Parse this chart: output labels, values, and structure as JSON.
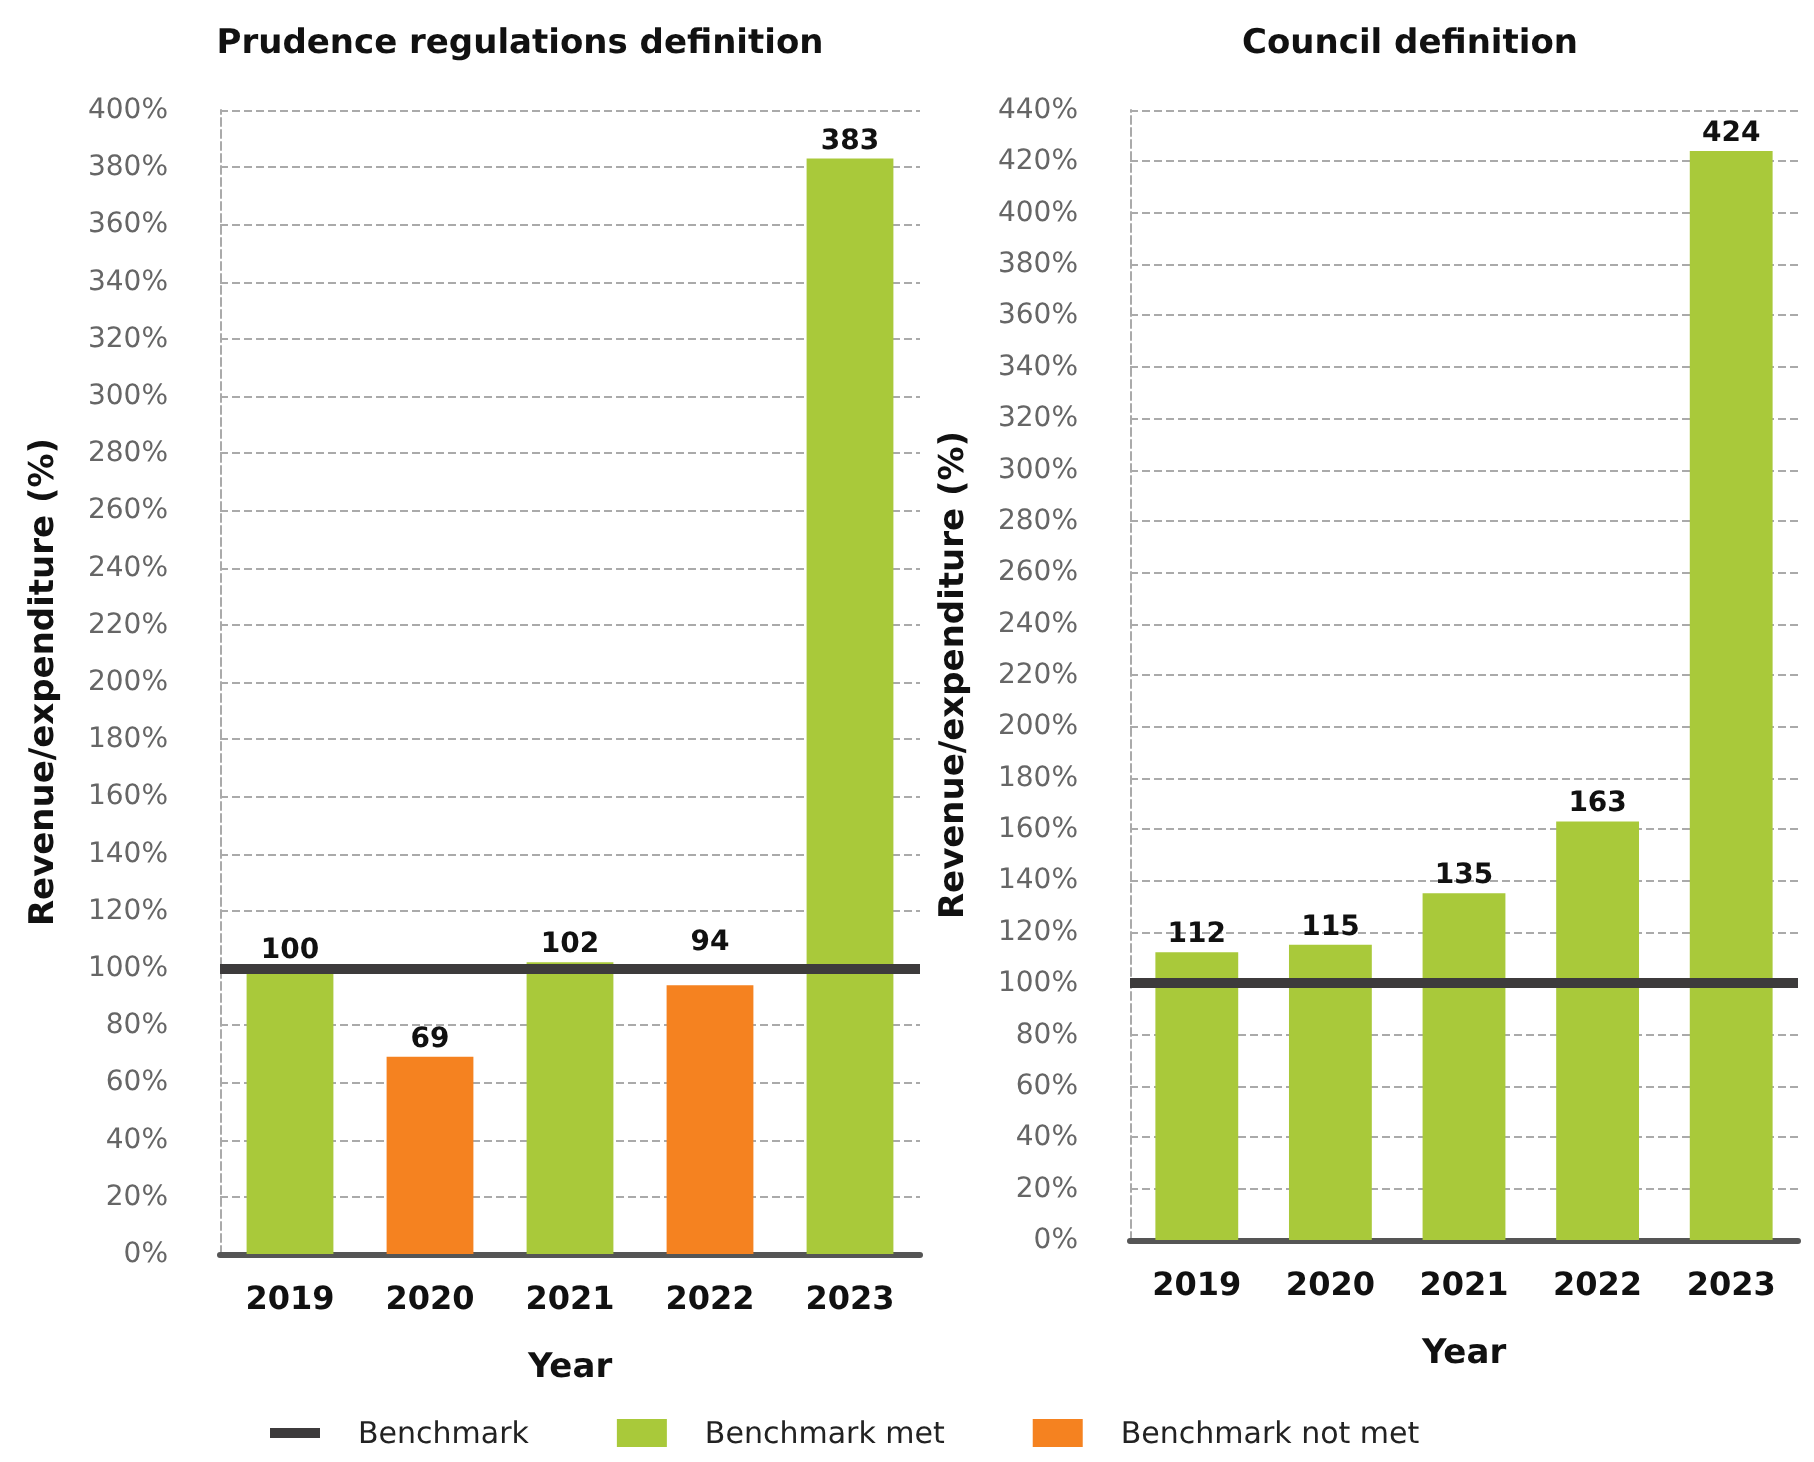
{
  "chart_data": [
    {
      "type": "bar",
      "title": "Prudence regulations definition",
      "xlabel": "Year",
      "ylabel": "Revenue/expenditure (%)",
      "categories": [
        "2019",
        "2020",
        "2021",
        "2022",
        "2023"
      ],
      "stacked": true,
      "data_labels": true,
      "grid": "y",
      "legend": "bottom",
      "series": [
        {
          "name": "Benchmark met",
          "color": "#a9c93a",
          "values": [
            100,
            null,
            102,
            null,
            383
          ]
        },
        {
          "name": "Benchmark not met",
          "color": "#f58220",
          "values": [
            null,
            69,
            null,
            94,
            null
          ]
        }
      ],
      "ref_lines": [
        {
          "axis": "y",
          "value": 100,
          "label": "Benchmark",
          "color": "#3d3b3c"
        }
      ],
      "ylim": [
        0,
        400
      ],
      "yticks": [
        {
          "value": 0,
          "label": "0%"
        },
        {
          "value": 20,
          "label": "20%"
        },
        {
          "value": 40,
          "label": "40%"
        },
        {
          "value": 60,
          "label": "60%"
        },
        {
          "value": 80,
          "label": "80%"
        },
        {
          "value": 100,
          "label": "100%"
        },
        {
          "value": 120,
          "label": "120%"
        },
        {
          "value": 140,
          "label": "140%"
        },
        {
          "value": 160,
          "label": "160%"
        },
        {
          "value": 180,
          "label": "180%"
        },
        {
          "value": 200,
          "label": "200%"
        },
        {
          "value": 220,
          "label": "220%"
        },
        {
          "value": 240,
          "label": "240%"
        },
        {
          "value": 260,
          "label": "260%"
        },
        {
          "value": 280,
          "label": "280%"
        },
        {
          "value": 300,
          "label": "300%"
        },
        {
          "value": 320,
          "label": "320%"
        },
        {
          "value": 340,
          "label": "340%"
        },
        {
          "value": 360,
          "label": "360%"
        },
        {
          "value": 380,
          "label": "380%"
        },
        {
          "value": 400,
          "label": "400%"
        }
      ]
    },
    {
      "type": "bar",
      "title": "Council definition",
      "xlabel": "Year",
      "ylabel": "Revenue/expenditure (%)",
      "categories": [
        "2019",
        "2020",
        "2021",
        "2022",
        "2023"
      ],
      "data_labels": true,
      "grid": "y",
      "values": [
        112,
        115,
        135,
        163,
        424
      ],
      "color": "#a9c93a",
      "ref_lines": [
        {
          "axis": "y",
          "value": 100,
          "color": "#3d3b3c"
        }
      ],
      "ylim": [
        0,
        440
      ],
      "yticks": [
        {
          "value": 0,
          "label": "0%"
        },
        {
          "value": 20,
          "label": "20%"
        },
        {
          "value": 40,
          "label": "40%"
        },
        {
          "value": 60,
          "label": "60%"
        },
        {
          "value": 80,
          "label": "80%"
        },
        {
          "value": 100,
          "label": "100%"
        },
        {
          "value": 120,
          "label": "120%"
        },
        {
          "value": 140,
          "label": "140%"
        },
        {
          "value": 160,
          "label": "160%"
        },
        {
          "value": 180,
          "label": "180%"
        },
        {
          "value": 200,
          "label": "200%"
        },
        {
          "value": 220,
          "label": "220%"
        },
        {
          "value": 240,
          "label": "240%"
        },
        {
          "value": 260,
          "label": "260%"
        },
        {
          "value": 280,
          "label": "280%"
        },
        {
          "value": 300,
          "label": "300%"
        },
        {
          "value": 320,
          "label": "320%"
        },
        {
          "value": 340,
          "label": "340%"
        },
        {
          "value": 360,
          "label": "360%"
        },
        {
          "value": 380,
          "label": "380%"
        },
        {
          "value": 400,
          "label": "400%"
        },
        {
          "value": 420,
          "label": "420%"
        },
        {
          "value": 440,
          "label": "440%"
        }
      ]
    }
  ]
}
